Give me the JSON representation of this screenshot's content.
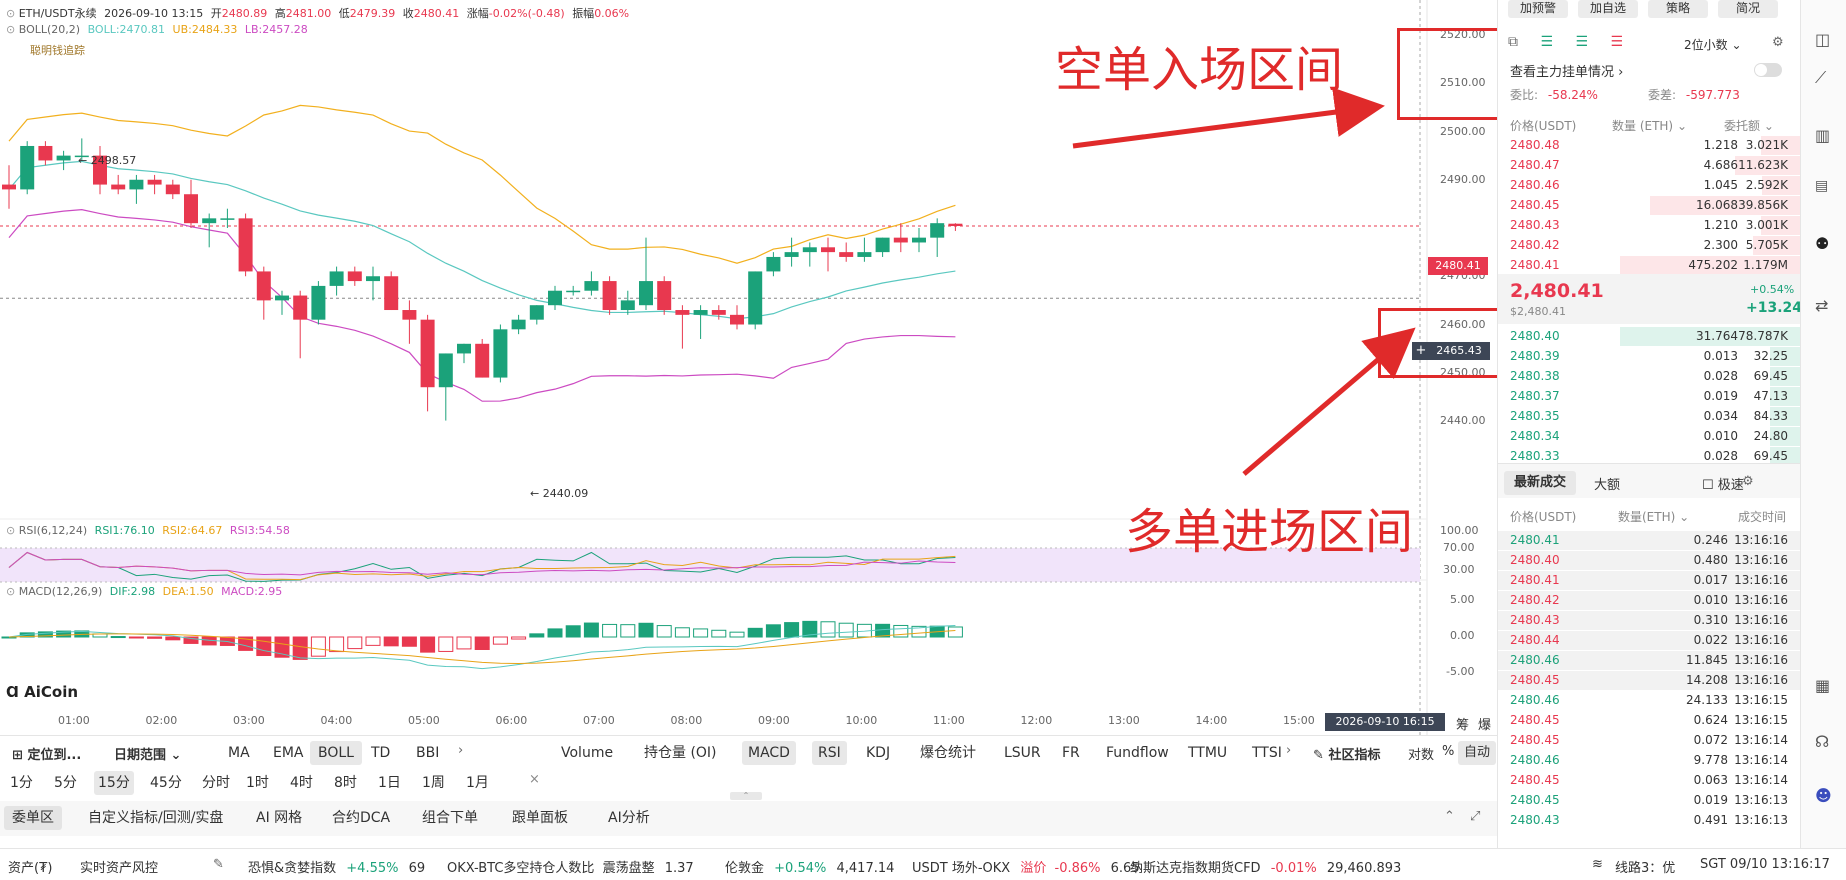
{
  "header": {
    "symbol": "ETH/USDT永续",
    "datetime": "2026-09-10 13:15",
    "open_label": "开",
    "open": "2480.89",
    "high_label": "高",
    "high": "2481.00",
    "low_label": "低",
    "low": "2479.39",
    "close_label": "收",
    "close": "2480.41",
    "change_label": "涨幅",
    "change": "-0.02%(-0.48)",
    "amp_label": "振幅",
    "amp": "0.06%"
  },
  "boll": {
    "label": "BOLL(20,2)",
    "bo": "BOLL:2470.81",
    "ub": "UB:2484.33",
    "lb": "LB:2457.28"
  },
  "smart_money": "聪明钱追踪",
  "price_axis": [
    "2520.00",
    "2510.00",
    "2500.00",
    "2490.00",
    "2480.41",
    "2470.00",
    "2465.43",
    "2460.00",
    "2450.00",
    "2440.00"
  ],
  "high_mark": "2498.57",
  "low_mark": "2440.09",
  "rsi": {
    "label": "RSI(6,12,24)",
    "r1": "RSI1:76.10",
    "r2": "RSI2:64.67",
    "r3": "RSI3:54.58",
    "axis": [
      "100.00",
      "70.00",
      "30.00"
    ]
  },
  "macd": {
    "label": "MACD(12,26,9)",
    "dif": "DIF:2.98",
    "dea": "DEA:1.50",
    "macd": "MACD:2.95",
    "axis": [
      "5.00",
      "0.00",
      "-5.00"
    ]
  },
  "logo": "AiCoin",
  "time_axis": [
    "01:00",
    "02:00",
    "03:00",
    "04:00",
    "05:00",
    "06:00",
    "07:00",
    "08:00",
    "09:00",
    "10:00",
    "11:00",
    "12:00",
    "13:00",
    "14:00",
    "15:00"
  ],
  "time_cursor": "2026-09-10 16:15",
  "chips_label": "筹",
  "burst_label": "爆",
  "annotations": {
    "short": "空单入场区间",
    "long": "多单进场区间"
  },
  "toolbar1": {
    "locate": "定位到...",
    "range": "日期范围",
    "indicators": [
      "MA",
      "EMA",
      "BOLL",
      "TD",
      "BBI"
    ],
    "sub": [
      "Volume",
      "持仓量 (OI)",
      "MACD",
      "RSI",
      "KDJ",
      "爆仓统计",
      "LSUR",
      "FR",
      "Fundflow",
      "TTMU",
      "TTSI"
    ],
    "community": "社区指标",
    "pair": "对数",
    "pct": "%",
    "auto": "自动"
  },
  "timeframes": [
    "1分",
    "5分",
    "15分",
    "45分",
    "分时",
    "1时",
    "4时",
    "8时",
    "1日",
    "1周",
    "1月"
  ],
  "bottom_tabs": [
    "委单区",
    "自定义指标/回测/实盘",
    "AI 网格",
    "合约DCA",
    "组合下单",
    "跟单面板",
    "AI分析"
  ],
  "right_top_buttons": [
    "加预警",
    "加自选",
    "策略",
    "简况"
  ],
  "orderbook": {
    "decimals": "2位小数",
    "main_orders": "查看主力挂单情况",
    "ratio_label": "委比:",
    "ratio": "-58.24%",
    "diff_label": "委差:",
    "diff": "-597.773",
    "headers": [
      "价格(USDT)",
      "数量 (ETH)",
      "委托额"
    ],
    "asks": [
      {
        "p": "2480.48",
        "q": "1.218",
        "v": "3.021K"
      },
      {
        "p": "2480.47",
        "q": "4.686",
        "v": "11.623K"
      },
      {
        "p": "2480.46",
        "q": "1.045",
        "v": "2.592K"
      },
      {
        "p": "2480.45",
        "q": "16.068",
        "v": "39.856K"
      },
      {
        "p": "2480.43",
        "q": "1.210",
        "v": "3.001K"
      },
      {
        "p": "2480.42",
        "q": "2.300",
        "v": "5.705K"
      },
      {
        "p": "2480.41",
        "q": "475.202",
        "v": "1.179M"
      }
    ],
    "last_price": "2,480.41",
    "last_sub": "$2,480.41",
    "change_pct": "+0.54%",
    "change_abs": "+13.24",
    "bids": [
      {
        "p": "2480.40",
        "q": "31.764",
        "v": "78.787K"
      },
      {
        "p": "2480.39",
        "q": "0.013",
        "v": "32.25"
      },
      {
        "p": "2480.38",
        "q": "0.028",
        "v": "69.45"
      },
      {
        "p": "2480.37",
        "q": "0.019",
        "v": "47.13"
      },
      {
        "p": "2480.35",
        "q": "0.034",
        "v": "84.33"
      },
      {
        "p": "2480.34",
        "q": "0.010",
        "v": "24.80"
      },
      {
        "p": "2480.33",
        "q": "0.028",
        "v": "69.45"
      }
    ]
  },
  "trades": {
    "tab_latest": "最新成交",
    "tab_big": "大额",
    "fast": "极速",
    "headers": [
      "价格(USDT)",
      "数量(ETH)",
      "成交时间"
    ],
    "rows": [
      {
        "p": "2480.41",
        "q": "0.246",
        "t": "13:16:16",
        "side": "buy"
      },
      {
        "p": "2480.40",
        "q": "0.480",
        "t": "13:16:16",
        "side": "sell"
      },
      {
        "p": "2480.41",
        "q": "0.017",
        "t": "13:16:16",
        "side": "sell"
      },
      {
        "p": "2480.42",
        "q": "0.010",
        "t": "13:16:16",
        "side": "sell"
      },
      {
        "p": "2480.43",
        "q": "0.310",
        "t": "13:16:16",
        "side": "sell"
      },
      {
        "p": "2480.44",
        "q": "0.022",
        "t": "13:16:16",
        "side": "sell"
      },
      {
        "p": "2480.46",
        "q": "11.845",
        "t": "13:16:16",
        "side": "buy"
      },
      {
        "p": "2480.45",
        "q": "14.208",
        "t": "13:16:16",
        "side": "sell"
      },
      {
        "p": "2480.46",
        "q": "24.133",
        "t": "13:16:15",
        "side": "buy"
      },
      {
        "p": "2480.45",
        "q": "0.624",
        "t": "13:16:15",
        "side": "sell"
      },
      {
        "p": "2480.45",
        "q": "0.072",
        "t": "13:16:14",
        "side": "sell"
      },
      {
        "p": "2480.46",
        "q": "9.778",
        "t": "13:16:14",
        "side": "buy"
      },
      {
        "p": "2480.45",
        "q": "0.063",
        "t": "13:16:14",
        "side": "sell"
      },
      {
        "p": "2480.45",
        "q": "0.019",
        "t": "13:16:13",
        "side": "buy"
      },
      {
        "p": "2480.43",
        "q": "0.491",
        "t": "13:16:13",
        "side": "buy"
      }
    ]
  },
  "statusbar": {
    "assets": "资产(₮)",
    "risk": "实时资产风控",
    "fear_label": "恐惧&贪婪指数",
    "fear_chg": "+4.55%",
    "fear_val": "69",
    "okx_label": "OKX-BTC多空持仓人数比",
    "okx_state": "震荡盘整",
    "okx_val": "1.37",
    "gold_label": "伦敦金",
    "gold_chg": "+0.54%",
    "gold_val": "4,417.14",
    "usdt_label": "USDT 场外-OKX",
    "usdt_prem": "溢价",
    "usdt_chg": "-0.86%",
    "usdt_val": "6.65",
    "nasdaq_label": "纳斯达克指数期货CFD",
    "nasdaq_chg": "-0.01%",
    "nasdaq_val": "29,460.893",
    "line": "线路3：优",
    "clock": "SGT 09/10 13:16:17"
  },
  "colors": {
    "up": "#1ba27a",
    "down": "#e8384f",
    "boll_mid": "#5ac8c0",
    "boll_ub": "#f2b01e",
    "boll_lb": "#cc4bc2",
    "annotation": "#e02a2a"
  },
  "chart_data": {
    "type": "candlestick",
    "interval": "15分",
    "candles": [
      {
        "t": "00:30",
        "o": 2489,
        "h": 2493,
        "l": 2484,
        "c": 2488
      },
      {
        "t": "00:45",
        "o": 2488,
        "h": 2498,
        "l": 2487,
        "c": 2497
      },
      {
        "t": "01:00",
        "o": 2497,
        "h": 2498,
        "l": 2493,
        "c": 2494
      },
      {
        "t": "01:15",
        "o": 2494,
        "h": 2496,
        "l": 2492,
        "c": 2495
      },
      {
        "t": "01:30",
        "o": 2495,
        "h": 2498.57,
        "l": 2494,
        "c": 2495
      },
      {
        "t": "01:45",
        "o": 2495,
        "h": 2497,
        "l": 2487,
        "c": 2489
      },
      {
        "t": "02:00",
        "o": 2489,
        "h": 2491,
        "l": 2487,
        "c": 2488
      },
      {
        "t": "02:15",
        "o": 2488,
        "h": 2491,
        "l": 2485,
        "c": 2490
      },
      {
        "t": "02:30",
        "o": 2490,
        "h": 2491,
        "l": 2487,
        "c": 2489
      },
      {
        "t": "02:45",
        "o": 2489,
        "h": 2490,
        "l": 2486,
        "c": 2487
      },
      {
        "t": "03:00",
        "o": 2487,
        "h": 2490,
        "l": 2480,
        "c": 2481
      },
      {
        "t": "03:15",
        "o": 2481,
        "h": 2483,
        "l": 2476,
        "c": 2482
      },
      {
        "t": "03:30",
        "o": 2482,
        "h": 2484,
        "l": 2480,
        "c": 2482
      },
      {
        "t": "03:45",
        "o": 2482,
        "h": 2483,
        "l": 2470,
        "c": 2471
      },
      {
        "t": "04:00",
        "o": 2471,
        "h": 2472,
        "l": 2461,
        "c": 2465
      },
      {
        "t": "04:15",
        "o": 2465,
        "h": 2467,
        "l": 2462,
        "c": 2466
      },
      {
        "t": "04:30",
        "o": 2466,
        "h": 2467,
        "l": 2453,
        "c": 2461
      },
      {
        "t": "04:45",
        "o": 2461,
        "h": 2469,
        "l": 2460,
        "c": 2468
      },
      {
        "t": "05:00",
        "o": 2468,
        "h": 2472,
        "l": 2466,
        "c": 2471
      },
      {
        "t": "05:15",
        "o": 2471,
        "h": 2472,
        "l": 2468,
        "c": 2469
      },
      {
        "t": "05:30",
        "o": 2469,
        "h": 2472,
        "l": 2465,
        "c": 2470
      },
      {
        "t": "05:45",
        "o": 2470,
        "h": 2471,
        "l": 2463,
        "c": 2463
      },
      {
        "t": "06:00",
        "o": 2463,
        "h": 2465,
        "l": 2456,
        "c": 2461
      },
      {
        "t": "06:15",
        "o": 2461,
        "h": 2462,
        "l": 2442,
        "c": 2447
      },
      {
        "t": "06:30",
        "o": 2447,
        "h": 2454,
        "l": 2440.09,
        "c": 2454
      },
      {
        "t": "06:45",
        "o": 2454,
        "h": 2456,
        "l": 2452,
        "c": 2456
      },
      {
        "t": "07:00",
        "o": 2456,
        "h": 2457,
        "l": 2449,
        "c": 2449
      },
      {
        "t": "07:15",
        "o": 2449,
        "h": 2460,
        "l": 2448,
        "c": 2459
      },
      {
        "t": "07:30",
        "o": 2459,
        "h": 2462,
        "l": 2458,
        "c": 2461
      },
      {
        "t": "07:45",
        "o": 2461,
        "h": 2464,
        "l": 2460,
        "c": 2464
      },
      {
        "t": "08:00",
        "o": 2464,
        "h": 2468,
        "l": 2463,
        "c": 2467
      },
      {
        "t": "08:15",
        "o": 2467,
        "h": 2468,
        "l": 2466,
        "c": 2467
      },
      {
        "t": "08:30",
        "o": 2467,
        "h": 2471,
        "l": 2466,
        "c": 2469
      },
      {
        "t": "08:45",
        "o": 2469,
        "h": 2470,
        "l": 2462,
        "c": 2463
      },
      {
        "t": "09:00",
        "o": 2463,
        "h": 2467,
        "l": 2462,
        "c": 2465
      },
      {
        "t": "09:15",
        "o": 2464,
        "h": 2478,
        "l": 2463,
        "c": 2469
      },
      {
        "t": "09:30",
        "o": 2469,
        "h": 2470,
        "l": 2462,
        "c": 2463
      },
      {
        "t": "09:45",
        "o": 2463,
        "h": 2464,
        "l": 2455,
        "c": 2462
      },
      {
        "t": "10:00",
        "o": 2462,
        "h": 2464,
        "l": 2457,
        "c": 2463
      },
      {
        "t": "10:15",
        "o": 2463,
        "h": 2464,
        "l": 2461,
        "c": 2462
      },
      {
        "t": "10:30",
        "o": 2462,
        "h": 2464,
        "l": 2459,
        "c": 2460
      },
      {
        "t": "10:45",
        "o": 2460,
        "h": 2471,
        "l": 2459,
        "c": 2471
      },
      {
        "t": "11:00",
        "o": 2471,
        "h": 2475,
        "l": 2470,
        "c": 2474
      },
      {
        "t": "11:15",
        "o": 2474,
        "h": 2478,
        "l": 2472,
        "c": 2475
      },
      {
        "t": "11:30",
        "o": 2475,
        "h": 2477,
        "l": 2472,
        "c": 2476
      },
      {
        "t": "11:45",
        "o": 2476,
        "h": 2478,
        "l": 2471,
        "c": 2475
      },
      {
        "t": "12:00",
        "o": 2475,
        "h": 2477,
        "l": 2473,
        "c": 2474
      },
      {
        "t": "12:15",
        "o": 2474,
        "h": 2478,
        "l": 2473,
        "c": 2475
      },
      {
        "t": "12:30",
        "o": 2475,
        "h": 2478,
        "l": 2474,
        "c": 2478
      },
      {
        "t": "12:45",
        "o": 2478,
        "h": 2481,
        "l": 2475,
        "c": 2477
      },
      {
        "t": "13:00",
        "o": 2477,
        "h": 2480,
        "l": 2475,
        "c": 2478
      },
      {
        "t": "13:15",
        "o": 2478,
        "h": 2482,
        "l": 2474,
        "c": 2481
      },
      {
        "t": "13:30",
        "o": 2480.89,
        "h": 2481.0,
        "l": 2479.39,
        "c": 2480.41
      }
    ],
    "ylim": [
      2435,
      2525
    ]
  }
}
